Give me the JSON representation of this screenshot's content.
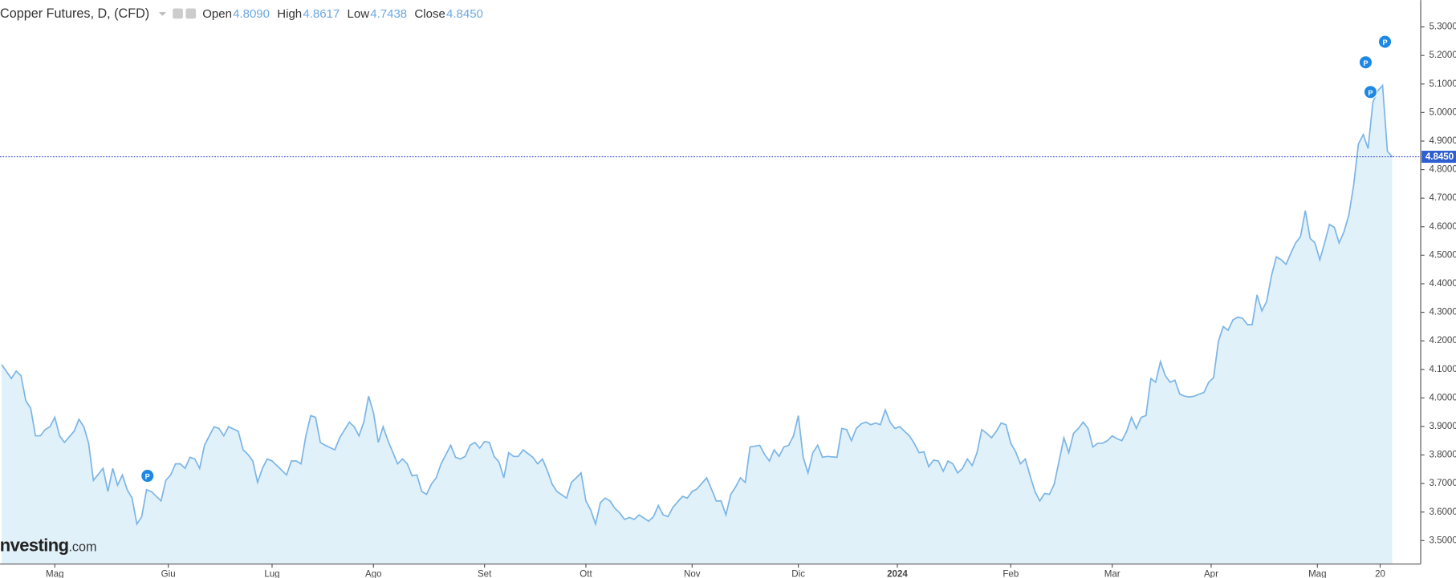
{
  "chart_data": {
    "type": "area",
    "title": "Copper Futures, D, (CFD)",
    "ohlc": [
      {
        "label": "Open",
        "value": "4.8090"
      },
      {
        "label": "High",
        "value": "4.8617"
      },
      {
        "label": "Low",
        "value": "4.7438"
      },
      {
        "label": "Close",
        "value": "4.8450"
      }
    ],
    "watermark": [
      "Investing",
      ".com"
    ],
    "color": "#7db6e6",
    "fill": "#e1f1fa",
    "last_price": {
      "value": 4.845,
      "label": "4.8450"
    },
    "x": [
      -11,
      -9,
      -8,
      -7,
      -6,
      -5,
      -4,
      -3,
      -2,
      -1,
      0,
      1,
      2,
      4,
      5,
      6,
      7,
      8,
      10,
      11,
      12,
      13,
      14,
      15,
      16,
      17,
      18,
      19,
      20,
      22,
      23,
      24,
      25,
      26,
      27,
      28,
      29,
      30,
      31,
      32,
      33,
      34,
      35,
      36,
      38,
      39,
      40,
      41,
      42,
      43,
      44,
      45,
      46,
      48,
      49,
      50,
      51,
      52,
      53,
      54,
      55,
      56,
      58,
      59,
      61,
      62,
      63,
      64,
      65,
      66,
      67,
      68,
      69,
      71,
      72,
      73,
      74,
      75,
      76,
      77,
      78,
      79,
      80,
      82,
      83,
      84,
      85,
      86,
      87,
      88,
      89,
      90,
      91,
      92,
      93,
      94,
      95,
      96,
      97,
      99,
      100,
      101,
      102,
      103,
      104,
      106,
      107,
      108,
      109,
      110,
      111,
      112,
      113,
      114,
      115,
      116,
      117,
      118,
      119,
      120,
      121,
      123,
      124,
      125,
      126,
      127,
      128,
      130,
      131,
      132,
      133,
      135,
      136,
      137,
      138,
      139,
      140,
      141,
      142,
      143,
      144,
      146,
      147,
      148,
      149,
      150,
      151,
      152,
      153,
      154,
      155,
      156,
      157,
      158,
      159,
      160,
      162,
      163,
      164,
      165,
      166,
      167,
      168,
      169,
      170,
      171,
      172,
      173,
      174,
      175,
      176,
      177,
      178,
      179,
      180,
      181,
      182,
      183,
      184,
      185,
      186,
      187,
      188,
      189,
      190,
      191,
      192,
      193,
      194,
      195,
      196,
      197,
      198,
      199,
      200,
      201,
      202,
      203,
      204,
      205,
      206,
      207,
      208,
      209,
      210,
      211,
      212,
      213,
      214,
      215,
      216,
      217,
      218,
      219,
      220,
      221,
      222,
      223,
      224,
      225,
      226,
      227,
      228,
      229,
      230,
      231,
      232,
      233,
      234,
      235,
      236,
      237,
      238,
      239,
      240,
      241,
      242,
      243,
      244,
      245,
      246,
      247,
      248,
      249,
      250,
      251,
      252,
      253,
      254,
      255,
      256,
      257,
      258,
      259,
      260,
      261,
      262,
      263,
      264,
      265,
      266,
      267,
      268,
      269,
      270,
      271,
      272,
      273,
      274,
      275,
      276,
      277
    ],
    "values": [
      4.117,
      4.068,
      4.094,
      4.078,
      3.99,
      3.964,
      3.867,
      3.867,
      3.889,
      3.899,
      3.932,
      3.867,
      3.844,
      3.883,
      3.925,
      3.899,
      3.841,
      3.711,
      3.753,
      3.672,
      3.753,
      3.694,
      3.73,
      3.678,
      3.649,
      3.558,
      3.584,
      3.678,
      3.672,
      3.639,
      3.711,
      3.73,
      3.769,
      3.769,
      3.753,
      3.792,
      3.786,
      3.753,
      3.834,
      3.867,
      3.899,
      3.893,
      3.867,
      3.899,
      3.883,
      3.818,
      3.802,
      3.779,
      3.704,
      3.753,
      3.786,
      3.779,
      3.763,
      3.73,
      3.779,
      3.779,
      3.769,
      3.867,
      3.938,
      3.932,
      3.844,
      3.834,
      3.818,
      3.86,
      3.915,
      3.899,
      3.867,
      3.915,
      4.006,
      3.948,
      3.844,
      3.899,
      3.85,
      3.769,
      3.786,
      3.769,
      3.727,
      3.73,
      3.672,
      3.662,
      3.698,
      3.72,
      3.769,
      3.834,
      3.792,
      3.786,
      3.795,
      3.834,
      3.844,
      3.824,
      3.847,
      3.844,
      3.795,
      3.775,
      3.72,
      3.808,
      3.795,
      3.795,
      3.818,
      3.792,
      3.769,
      3.786,
      3.746,
      3.698,
      3.672,
      3.649,
      3.704,
      3.72,
      3.737,
      3.639,
      3.607,
      3.558,
      3.633,
      3.649,
      3.639,
      3.613,
      3.597,
      3.574,
      3.581,
      3.574,
      3.59,
      3.568,
      3.584,
      3.623,
      3.59,
      3.584,
      3.616,
      3.655,
      3.649,
      3.672,
      3.681,
      3.72,
      3.681,
      3.639,
      3.639,
      3.59,
      3.662,
      3.688,
      3.72,
      3.704,
      3.828,
      3.834,
      3.802,
      3.779,
      3.818,
      3.795,
      3.828,
      3.834,
      3.867,
      3.938,
      3.792,
      3.737,
      3.808,
      3.834,
      3.792,
      3.795,
      3.792,
      3.893,
      3.889,
      3.85,
      3.893,
      3.909,
      3.915,
      3.906,
      3.912,
      3.906,
      3.958,
      3.915,
      3.893,
      3.899,
      3.883,
      3.867,
      3.841,
      3.808,
      3.811,
      3.759,
      3.782,
      3.779,
      3.743,
      3.779,
      3.769,
      3.737,
      3.753,
      3.786,
      3.763,
      3.808,
      3.889,
      3.876,
      3.86,
      3.883,
      3.912,
      3.906,
      3.841,
      3.811,
      3.769,
      3.786,
      3.727,
      3.672,
      3.639,
      3.665,
      3.662,
      3.698,
      3.779,
      3.86,
      3.808,
      3.876,
      3.893,
      3.915,
      3.893,
      3.828,
      3.841,
      3.841,
      3.85,
      3.867,
      3.857,
      3.85,
      3.883,
      3.932,
      3.893,
      3.932,
      3.938,
      4.068,
      4.055,
      4.127,
      4.078,
      4.055,
      4.062,
      4.013,
      4.006,
      4.003,
      4.006,
      4.013,
      4.019,
      4.055,
      4.071,
      4.198,
      4.25,
      4.237,
      4.273,
      4.283,
      4.279,
      4.257,
      4.257,
      4.361,
      4.305,
      4.338,
      4.429,
      4.494,
      4.484,
      4.468,
      4.507,
      4.543,
      4.565,
      4.656,
      4.559,
      4.543,
      4.484,
      4.543,
      4.608,
      4.598,
      4.543,
      4.582,
      4.64,
      4.744,
      4.89,
      4.923,
      4.874,
      5.037,
      5.076,
      5.095,
      4.864,
      4.845
    ],
    "xlim": [
      -11.35,
      282.9
    ],
    "xticks": [
      {
        "value": 0,
        "label": "Mag"
      },
      {
        "value": 23.5,
        "label": "Giu"
      },
      {
        "value": 45,
        "label": "Lug"
      },
      {
        "value": 66,
        "label": "Ago"
      },
      {
        "value": 89,
        "label": "Set"
      },
      {
        "value": 110,
        "label": "Ott"
      },
      {
        "value": 132,
        "label": "Nov"
      },
      {
        "value": 154,
        "label": "Dic"
      },
      {
        "value": 174.5,
        "label": "2024"
      },
      {
        "value": 198,
        "label": "Feb"
      },
      {
        "value": 219,
        "label": "Mar"
      },
      {
        "value": 239.5,
        "label": "Apr"
      },
      {
        "value": 261.5,
        "label": "Mag"
      },
      {
        "value": 274.5,
        "label": "20"
      }
    ],
    "ylim": [
      3.418,
      5.394
    ],
    "yticks": [
      {
        "value": 3.5,
        "label": "3.5000"
      },
      {
        "value": 3.6,
        "label": "3.6000"
      },
      {
        "value": 3.7,
        "label": "3.7000"
      },
      {
        "value": 3.8,
        "label": "3.8000"
      },
      {
        "value": 3.9,
        "label": "3.9000"
      },
      {
        "value": 4.0,
        "label": "4.0000"
      },
      {
        "value": 4.1,
        "label": "4.1000"
      },
      {
        "value": 4.2,
        "label": "4.2000"
      },
      {
        "value": 4.3,
        "label": "4.3000"
      },
      {
        "value": 4.4,
        "label": "4.4000"
      },
      {
        "value": 4.5,
        "label": "4.5000"
      },
      {
        "value": 4.6,
        "label": "4.6000"
      },
      {
        "value": 4.7,
        "label": "4.7000"
      },
      {
        "value": 4.8,
        "label": "4.8000"
      },
      {
        "value": 4.9,
        "label": "4.9000"
      },
      {
        "value": 5.0,
        "label": "5.0000"
      },
      {
        "value": 5.1,
        "label": "5.1000"
      },
      {
        "value": 5.2,
        "label": "5.2000"
      },
      {
        "value": 5.3,
        "label": "5.3000"
      }
    ],
    "annotations": [
      {
        "text": "P",
        "x": 19.2,
        "y": 3.727
      },
      {
        "text": "P",
        "x": 272.5,
        "y": 5.072
      },
      {
        "text": "P",
        "x": 271.5,
        "y": 5.176
      },
      {
        "text": "P",
        "x": 275.5,
        "y": 5.248
      }
    ]
  }
}
